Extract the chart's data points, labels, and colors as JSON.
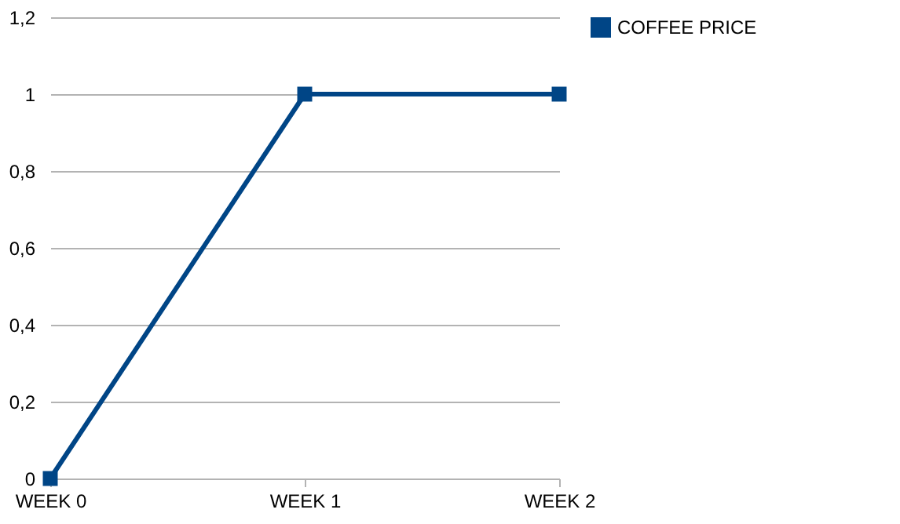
{
  "chart_data": {
    "type": "line",
    "categories": [
      "WEEK 0",
      "WEEK 1",
      "WEEK 2"
    ],
    "series": [
      {
        "name": "COFFEE PRICE",
        "color": "#004586",
        "values": [
          0,
          1,
          1
        ]
      }
    ],
    "ylim": [
      0,
      1.2
    ],
    "yticks": [
      0,
      {
        "value": 0.2,
        "label": "0,2"
      },
      {
        "value": 0.4,
        "label": "0,4"
      },
      {
        "value": 0.6,
        "label": "0,6"
      },
      {
        "value": 0.8,
        "label": "0,8"
      },
      1,
      {
        "value": 1.2,
        "label": "1,2"
      }
    ],
    "grid": "y",
    "legend": "right",
    "marker": "square",
    "line_style": "solid"
  }
}
